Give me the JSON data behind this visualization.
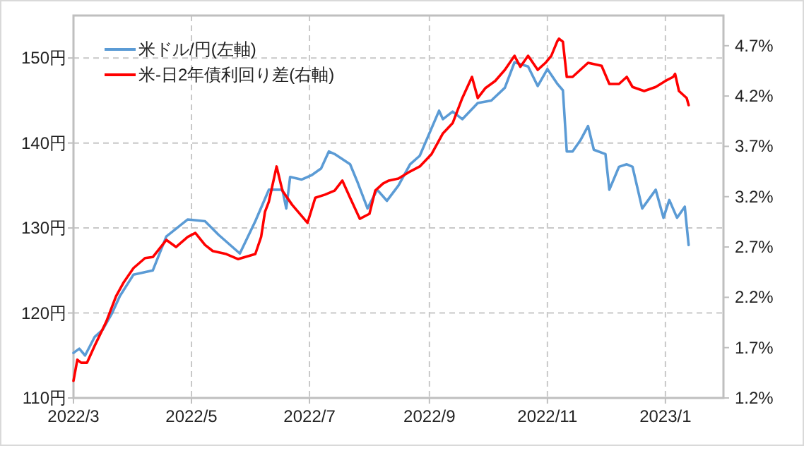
{
  "chart_data": {
    "type": "line",
    "xlim": [
      "2022-03-01",
      "2023-01-31"
    ],
    "xticks": [
      {
        "value": "2022-03-01",
        "label": "2022/3"
      },
      {
        "value": "2022-05-01",
        "label": "2022/5"
      },
      {
        "value": "2022-07-01",
        "label": "2022/7"
      },
      {
        "value": "2022-09-01",
        "label": "2022/9"
      },
      {
        "value": "2022-11-01",
        "label": "2022/11"
      },
      {
        "value": "2023-01-01",
        "label": "2023/1"
      }
    ],
    "ylim": [
      110,
      155
    ],
    "yticks": [
      {
        "value": 110,
        "label": "110円"
      },
      {
        "value": 120,
        "label": "120円"
      },
      {
        "value": 130,
        "label": "130円"
      },
      {
        "value": 140,
        "label": "140円"
      },
      {
        "value": 150,
        "label": "150円"
      }
    ],
    "y2lim": [
      1.2,
      5.0
    ],
    "y2ticks": [
      {
        "value": 1.2,
        "label": "1.2%"
      },
      {
        "value": 1.7,
        "label": "1.7%"
      },
      {
        "value": 2.2,
        "label": "2.2%"
      },
      {
        "value": 2.7,
        "label": "2.7%"
      },
      {
        "value": 3.2,
        "label": "3.2%"
      },
      {
        "value": 3.7,
        "label": "3.7%"
      },
      {
        "value": 4.2,
        "label": "4.2%"
      },
      {
        "value": 4.7,
        "label": "4.7%"
      }
    ],
    "grid": true,
    "legend": "top left",
    "marker": "none",
    "line_style": "solid",
    "series": [
      {
        "name": "米ドル/円(左軸)",
        "color": "#5b9bd5",
        "x": [
          "2022-03-01",
          "2022-03-04",
          "2022-03-07",
          "2022-03-12",
          "2022-03-16",
          "2022-03-21",
          "2022-03-25",
          "2022-04-01",
          "2022-04-11",
          "2022-04-18",
          "2022-04-29",
          "2022-05-08",
          "2022-05-15",
          "2022-05-26",
          "2022-06-03",
          "2022-06-10",
          "2022-06-17",
          "2022-06-19",
          "2022-06-21",
          "2022-06-27",
          "2022-07-02",
          "2022-07-07",
          "2022-07-11",
          "2022-07-14",
          "2022-07-22",
          "2022-07-26",
          "2022-07-31",
          "2022-08-05",
          "2022-08-10",
          "2022-08-16",
          "2022-08-22",
          "2022-08-27",
          "2022-09-06",
          "2022-09-08",
          "2022-09-13",
          "2022-09-18",
          "2022-09-26",
          "2022-10-03",
          "2022-10-10",
          "2022-10-15",
          "2022-10-22",
          "2022-10-27",
          "2022-11-01",
          "2022-11-06",
          "2022-11-09",
          "2022-11-11",
          "2022-11-14",
          "2022-11-18",
          "2022-11-22",
          "2022-11-25",
          "2022-12-01",
          "2022-12-03",
          "2022-12-08",
          "2022-12-12",
          "2022-12-15",
          "2022-12-20",
          "2022-12-27",
          "2022-12-31",
          "2023-01-03",
          "2023-01-07",
          "2023-01-11",
          "2023-01-13"
        ],
        "values": [
          115.3,
          115.8,
          115.0,
          117.2,
          118.0,
          120.0,
          122.0,
          124.5,
          125.0,
          129.0,
          131.0,
          130.8,
          129.2,
          127.0,
          130.8,
          134.5,
          134.5,
          132.3,
          136.0,
          135.7,
          136.2,
          137.0,
          139.0,
          138.7,
          137.5,
          135.3,
          132.3,
          134.5,
          133.2,
          135.0,
          137.5,
          138.5,
          143.8,
          142.8,
          143.7,
          142.8,
          144.7,
          145.0,
          146.5,
          149.5,
          149.0,
          146.7,
          148.7,
          147.0,
          146.2,
          139.0,
          139.0,
          140.3,
          142.0,
          139.2,
          138.7,
          134.5,
          137.2,
          137.5,
          137.2,
          132.3,
          134.5,
          131.2,
          133.3,
          131.2,
          132.5,
          128.0
        ]
      },
      {
        "name": "米-日2年債利回り差(右軸)",
        "color": "#ff0000",
        "axis": "y2",
        "x": [
          "2022-03-01",
          "2022-03-03",
          "2022-03-05",
          "2022-03-08",
          "2022-03-12",
          "2022-03-18",
          "2022-03-23",
          "2022-03-27",
          "2022-04-01",
          "2022-04-07",
          "2022-04-11",
          "2022-04-18",
          "2022-04-23",
          "2022-04-29",
          "2022-05-03",
          "2022-05-08",
          "2022-05-12",
          "2022-05-19",
          "2022-05-25",
          "2022-06-03",
          "2022-06-06",
          "2022-06-08",
          "2022-06-10",
          "2022-06-14",
          "2022-06-17",
          "2022-06-22",
          "2022-06-30",
          "2022-07-04",
          "2022-07-09",
          "2022-07-14",
          "2022-07-18",
          "2022-07-22",
          "2022-07-27",
          "2022-08-01",
          "2022-08-04",
          "2022-08-08",
          "2022-08-11",
          "2022-08-16",
          "2022-08-22",
          "2022-08-27",
          "2022-09-02",
          "2022-09-08",
          "2022-09-13",
          "2022-09-18",
          "2022-09-23",
          "2022-09-26",
          "2022-09-30",
          "2022-10-05",
          "2022-10-10",
          "2022-10-15",
          "2022-10-18",
          "2022-10-22",
          "2022-10-27",
          "2022-10-31",
          "2022-11-03",
          "2022-11-06",
          "2022-11-07",
          "2022-11-09",
          "2022-11-11",
          "2022-11-14",
          "2022-11-18",
          "2022-11-22",
          "2022-11-29",
          "2022-12-03",
          "2022-12-08",
          "2022-12-12",
          "2022-12-15",
          "2022-12-21",
          "2022-12-27",
          "2023-01-01",
          "2023-01-05",
          "2023-01-06",
          "2023-01-08",
          "2023-01-12",
          "2023-01-13"
        ],
        "values": [
          1.37,
          1.58,
          1.55,
          1.55,
          1.72,
          1.96,
          2.21,
          2.35,
          2.49,
          2.59,
          2.6,
          2.77,
          2.7,
          2.8,
          2.84,
          2.72,
          2.66,
          2.63,
          2.58,
          2.63,
          2.8,
          3.05,
          3.15,
          3.5,
          3.26,
          3.12,
          2.94,
          3.19,
          3.22,
          3.26,
          3.36,
          3.19,
          2.98,
          3.03,
          3.26,
          3.33,
          3.36,
          3.38,
          3.45,
          3.5,
          3.62,
          3.83,
          3.93,
          4.18,
          4.39,
          4.18,
          4.28,
          4.35,
          4.46,
          4.6,
          4.49,
          4.6,
          4.46,
          4.53,
          4.6,
          4.74,
          4.77,
          4.74,
          4.39,
          4.39,
          4.46,
          4.53,
          4.5,
          4.32,
          4.32,
          4.39,
          4.29,
          4.25,
          4.29,
          4.35,
          4.39,
          4.42,
          4.25,
          4.18,
          4.11
        ]
      }
    ]
  }
}
